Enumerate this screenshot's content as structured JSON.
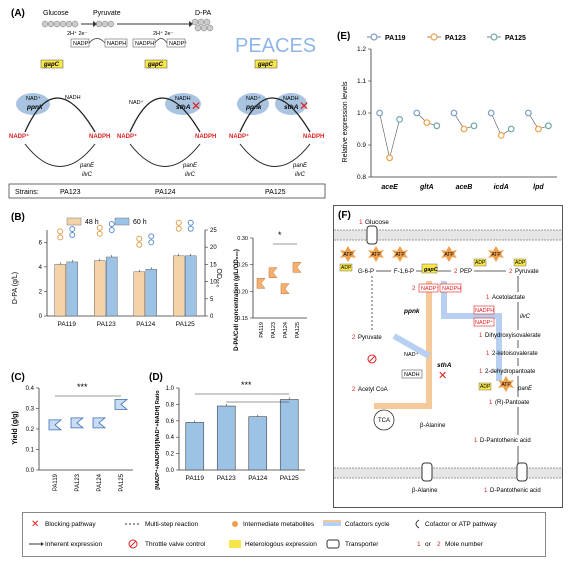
{
  "panelA": {
    "label": "(A)",
    "glucose": "Glucose",
    "pyruvate": "Pyruvate",
    "dpa": "D-PA",
    "reaction1": "2H⁺ 2e⁻",
    "reaction2": "2H⁺ 2e⁻",
    "nadp": "NADP⁺",
    "nadph": "NADPH",
    "peaces_logo": "PEACES",
    "gapC": "gapC",
    "ppnk": "ppnk",
    "sthA": "sthA",
    "nad": "NAD⁺",
    "nadh": "NADH",
    "panE": "panE",
    "ilvC": "ilvC",
    "strains_label": "Strains:",
    "strains": [
      "PA123",
      "PA124",
      "PA125"
    ]
  },
  "panelB": {
    "label": "(B)",
    "legend": [
      "48 h",
      "60 h"
    ],
    "ylabel_left": "D-PA (g/L)",
    "ylabel_right": "OD₆₀₀",
    "categories": [
      "PA119",
      "PA123",
      "PA124",
      "PA125"
    ],
    "left_ticks": [
      "0",
      "2",
      "4",
      "6"
    ],
    "right_ticks": [
      "0",
      "5",
      "10",
      "15",
      "20",
      "25"
    ],
    "inset_ylabel": "D-PA/Cell concentration (g/L/OD₆₀₀)",
    "inset_ticks": [
      "0.15",
      "0.20",
      "0.25",
      "0.30"
    ],
    "inset_sig": "*"
  },
  "panelC": {
    "label": "(C)",
    "ylabel": "Yield (g/g)",
    "ticks": [
      "0.0",
      "0.1",
      "0.2",
      "0.3",
      "0.4"
    ],
    "categories": [
      "PA119",
      "PA123",
      "PA124",
      "PA125"
    ],
    "sig": "***"
  },
  "panelD": {
    "label": "(D)",
    "ylabel": "[NADP⁺+NADPH]/[NAD⁺+NADH] Ratio",
    "ticks": [
      "0.0",
      "0.2",
      "0.4",
      "0.6",
      "0.8",
      "1.0"
    ],
    "categories": [
      "PA119",
      "PA123",
      "PA124",
      "PA125"
    ],
    "sig": "***"
  },
  "panelE": {
    "label": "(E)",
    "legend": [
      "PA119",
      "PA123",
      "PA125"
    ],
    "ylabel": "Relative expression levels",
    "ticks": [
      "0.8",
      "0.9",
      "1.0",
      "1.1",
      "1.2"
    ],
    "genes": [
      "aceE",
      "gltA",
      "aceB",
      "icdA",
      "lpd"
    ]
  },
  "panelF": {
    "label": "(F)",
    "glucose": "Glucose",
    "glucose_n": "1",
    "g6p": "G-6-P",
    "f16p": "F-1,6-P",
    "pep": "PEP",
    "pyruvate": "Pyruvate",
    "pyruvate_n": "2",
    "pep_n": "2",
    "acetolactate": "Acetolactate",
    "dhiv": "Dihydroxyisovalerate",
    "ketoiso": "2-ketoisovalerate",
    "dehydro": "2-dehydropantoate",
    "pantoate": "(R)-Pantoate",
    "dpantothenic": "D-Pantothenic acid",
    "dpa_out": "D-Pantothenic acid",
    "pyruvate2": "Pyruvate",
    "acetylcoa": "Acetyl CoA",
    "tca": "TCA",
    "balanine": "β-Alanine",
    "balanine_out": "β-Alanine",
    "ppnk": "ppnk",
    "sthA": "sthA",
    "gapC": "gapC",
    "ilvC": "ilvC",
    "panE": "panE",
    "nadp": "NADP⁺",
    "nadph": "NADPH",
    "nad": "NAD⁺",
    "nadh": "NADH",
    "atp": "ATP",
    "adp": "ADP",
    "one": "1",
    "two": "2"
  },
  "legend": {
    "blocking": "Blocking pathway",
    "inherent": "Inherent expression",
    "multistep": "Multi-step reaction",
    "throttle": "Throttle valve control",
    "intermediate": "Intermediate metabolites",
    "heterologous": "Heterologous expression",
    "cofactors": "Cofactors cycle",
    "transporter": "Transporter",
    "cofactor_atp": "Cofactor or ATP pathway",
    "mole": "Mole number",
    "mole_prefix": "1",
    "mole_or": "or",
    "mole_2": "2"
  },
  "colors": {
    "bar48": "#f5d3a8",
    "bar60": "#9cc3e6",
    "orange": "#f0a04b",
    "blue": "#5b8fd0",
    "red": "#e02020",
    "yellow": "#f6e64a",
    "peaces": "#8fb6e8"
  },
  "chart_data": [
    {
      "type": "bar",
      "panel": "B",
      "categories": [
        "PA119",
        "PA123",
        "PA124",
        "PA125"
      ],
      "series": [
        {
          "name": "48 h",
          "values": [
            4.2,
            4.5,
            3.6,
            4.9
          ]
        },
        {
          "name": "60 h",
          "values": [
            4.4,
            4.8,
            3.8,
            4.9
          ]
        }
      ],
      "ylim": [
        0,
        7
      ]
    },
    {
      "type": "bar",
      "panel": "D",
      "categories": [
        "PA119",
        "PA123",
        "PA124",
        "PA125"
      ],
      "values": [
        0.58,
        0.78,
        0.65,
        0.86
      ],
      "ylim": [
        0,
        1.0
      ]
    },
    {
      "type": "scatter",
      "panel": "E",
      "categories": [
        "aceE",
        "gltA",
        "aceB",
        "icdA",
        "lpd"
      ],
      "series": [
        {
          "name": "PA119",
          "values": [
            1.0,
            1.0,
            1.0,
            1.0,
            1.0
          ]
        },
        {
          "name": "PA123",
          "values": [
            0.86,
            0.97,
            0.95,
            0.93,
            0.95
          ]
        },
        {
          "name": "PA125",
          "values": [
            0.98,
            0.96,
            0.96,
            0.95,
            0.96
          ]
        }
      ],
      "ylim": [
        0.8,
        1.2
      ]
    }
  ]
}
